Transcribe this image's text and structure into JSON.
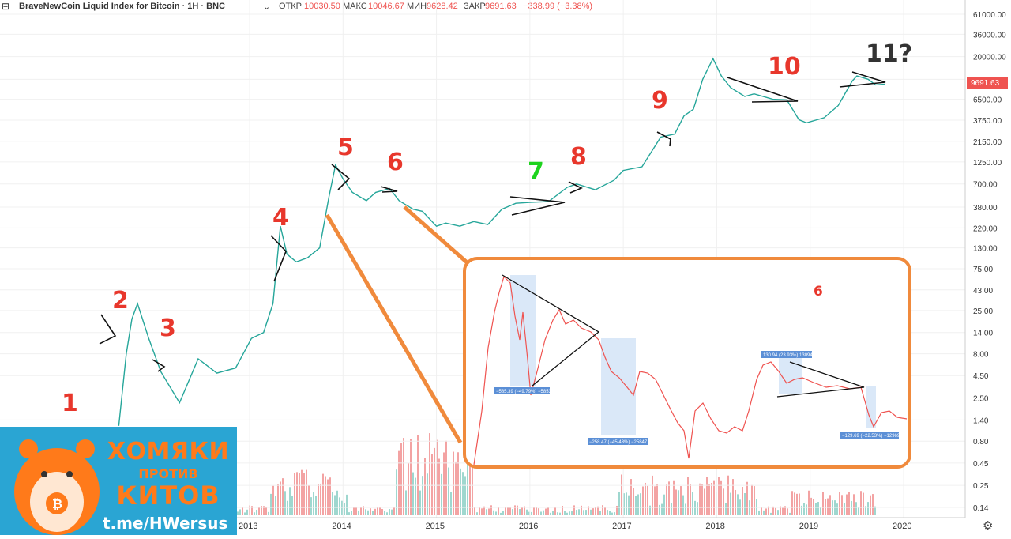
{
  "header": {
    "symbol": "BraveNewCoin Liquid Index for Bitcoin · 1H · BNC",
    "open_label": "ОТКР",
    "open_value": "10030.50",
    "high_label": "МАКС",
    "high_value": "10046.67",
    "low_label": "МИН",
    "low_value": "9628.42",
    "close_label": "ЗАКР",
    "close_value": "9691.63",
    "change": "−338.99 (−3.38%)"
  },
  "colors": {
    "up": "#26a69a",
    "down": "#ef5350",
    "wave_red": "#e8372c",
    "wave_green": "#1ed31e",
    "orange": "#f08a3c",
    "price_tag": "#ef5350"
  },
  "chart_data": {
    "type": "line",
    "y_scale": "log",
    "y_ticks": [
      "61000.00",
      "36000.00",
      "20000.00",
      "11000.00",
      "6500.00",
      "3750.00",
      "2150.00",
      "1250.00",
      "700.00",
      "380.00",
      "220.00",
      "130.00",
      "75.00",
      "43.00",
      "25.00",
      "14.00",
      "8.00",
      "4.50",
      "2.50",
      "1.40",
      "0.80",
      "0.45",
      "0.25",
      "0.14"
    ],
    "x_ticks": [
      "2013",
      "2014",
      "2015",
      "2016",
      "2017",
      "2018",
      "2019",
      "2020"
    ],
    "last_price": "9691.63",
    "series": [
      {
        "x": [
          2011.6,
          2011.68,
          2011.74,
          2011.8,
          2011.92,
          2012.05,
          2012.25,
          2012.45,
          2012.65,
          2012.85,
          2013.02,
          2013.15,
          2013.25,
          2013.33,
          2013.4,
          2013.5,
          2013.62,
          2013.75,
          2013.85,
          2013.92,
          2014.0,
          2014.1,
          2014.25,
          2014.35,
          2014.5,
          2014.6,
          2014.75,
          2014.85,
          2015.0,
          2015.1,
          2015.25,
          2015.4,
          2015.55,
          2015.7,
          2015.85,
          2016.0,
          2016.2,
          2016.4,
          2016.5,
          2016.7,
          2016.9,
          2017.0,
          2017.2,
          2017.4,
          2017.55,
          2017.65,
          2017.75,
          2017.85,
          2017.96,
          2018.05,
          2018.15,
          2018.3,
          2018.4,
          2018.6,
          2018.75,
          2018.88,
          2018.96,
          2019.15,
          2019.3,
          2019.45,
          2019.5,
          2019.62,
          2019.7,
          2019.8
        ],
        "values": [
          1.2,
          8,
          20,
          30,
          12,
          5,
          2.2,
          7,
          4.8,
          5.5,
          12,
          14,
          30,
          230,
          110,
          90,
          100,
          130,
          500,
          1150,
          800,
          560,
          450,
          560,
          620,
          450,
          360,
          340,
          230,
          250,
          230,
          260,
          240,
          360,
          420,
          430,
          440,
          640,
          700,
          600,
          770,
          1000,
          1100,
          2400,
          2600,
          4200,
          5000,
          11000,
          19000,
          12000,
          8800,
          7000,
          7500,
          6500,
          6400,
          3800,
          3500,
          4000,
          5500,
          10500,
          12000,
          11000,
          9500,
          9691.63
        ]
      }
    ],
    "volume": {
      "description_free": true,
      "peak_years": [
        "2013",
        "2015",
        "2017",
        "2018"
      ]
    },
    "annotations": [
      "1",
      "2",
      "3",
      "4",
      "5",
      "6",
      "7",
      "8",
      "9",
      "10",
      "11?"
    ],
    "inset": {
      "wave_label": "6",
      "measures": [
        "−585.39 (−49.79%) −58539",
        "−258.47 (−45.43%) −25847",
        "130.94 (23.93%) 13094",
        "−129.69 (−22.53%) −12969"
      ]
    }
  },
  "promo": {
    "line1": "ХОМЯКИ",
    "line2": "ПРОТИВ",
    "line3": "КИТОВ",
    "link": "t.me/HWersus"
  }
}
